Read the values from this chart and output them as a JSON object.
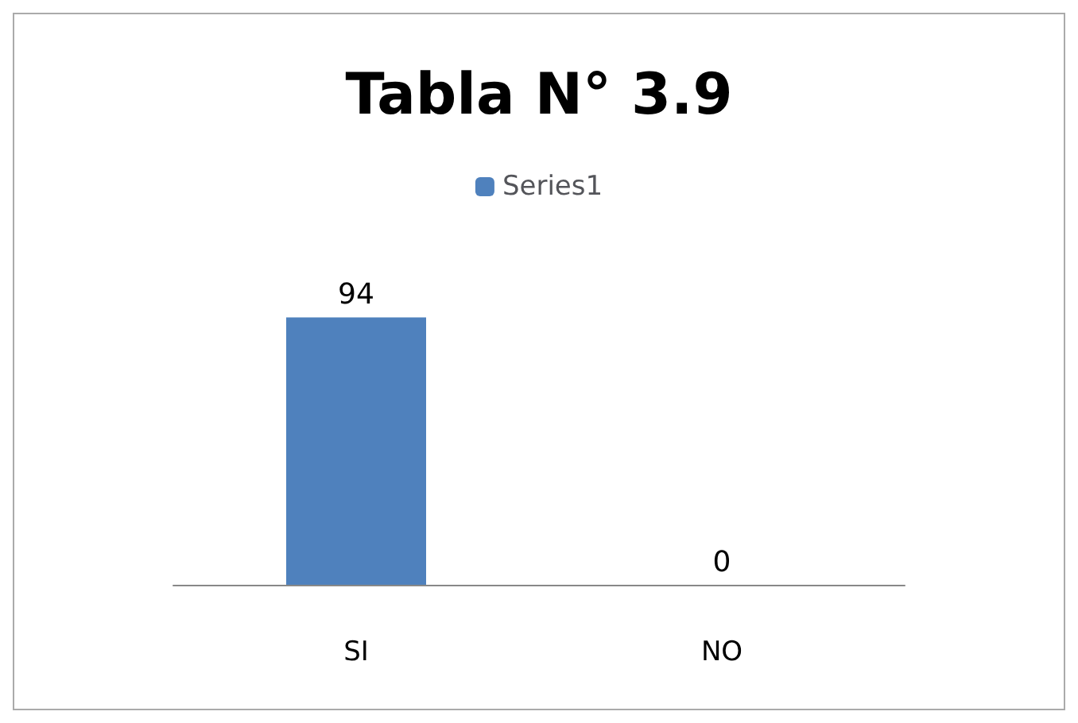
{
  "chart_data": {
    "type": "bar",
    "title": "Tabla N° 3.9",
    "categories": [
      "SI",
      "NO"
    ],
    "series": [
      {
        "name": "Series1",
        "color": "#4f81bd",
        "values": [
          94,
          0
        ]
      }
    ],
    "data_labels": true,
    "legend": "top"
  }
}
